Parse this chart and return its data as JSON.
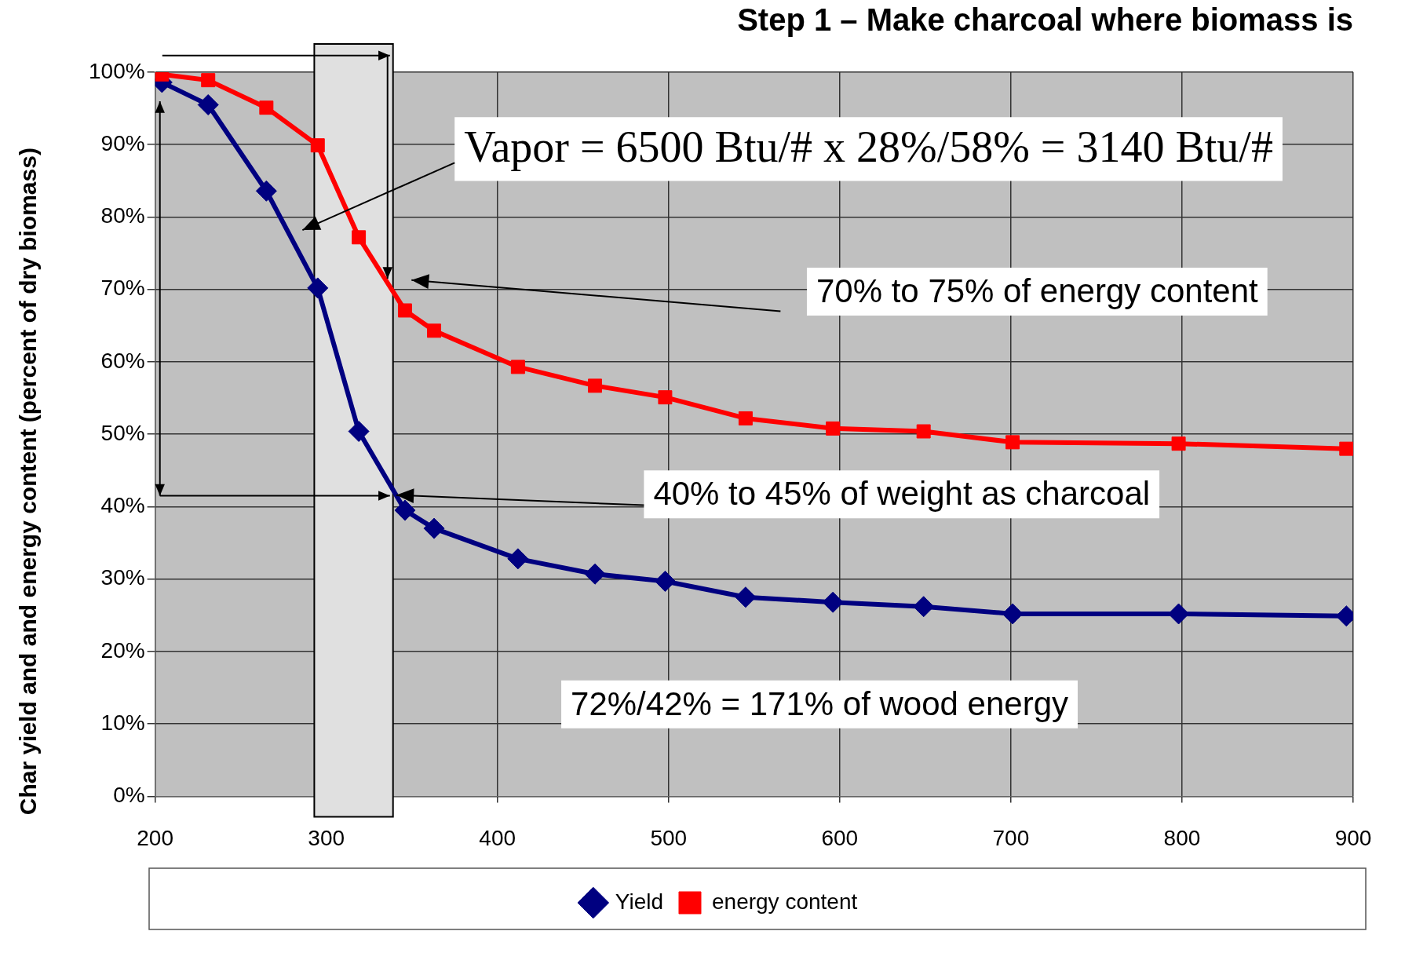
{
  "chart_data": {
    "type": "line",
    "title": "Step 1 – Make charcoal where biomass is",
    "ylabel": "Char yield and and energy content (percent of dry biomass)",
    "x": [
      204,
      231,
      265,
      295,
      319,
      346,
      363,
      412,
      457,
      498,
      545,
      596,
      649,
      701,
      798,
      896
    ],
    "series": [
      {
        "name": "Yield",
        "color": "#000080",
        "marker": "diamond",
        "values": [
          98.6,
          95.5,
          83.6,
          70.2,
          50.4,
          39.5,
          37,
          32.8,
          30.7,
          29.7,
          27.5,
          26.8,
          26.2,
          25.2,
          25.2,
          24.9
        ]
      },
      {
        "name": "energy content",
        "color": "#ff0000",
        "marker": "square",
        "values": [
          99.7,
          98.9,
          95.1,
          89.9,
          77.2,
          67.1,
          64.3,
          59.3,
          56.7,
          55.1,
          52.2,
          50.8,
          50.4,
          48.9,
          48.7,
          48
        ]
      }
    ],
    "xlim": [
      200,
      900
    ],
    "xticks": [
      200,
      300,
      400,
      500,
      600,
      700,
      800,
      900
    ],
    "ylim": [
      0,
      100
    ],
    "yticks": [
      {
        "value": 0,
        "label": "0%"
      },
      {
        "value": 10,
        "label": "10%"
      },
      {
        "value": 20,
        "label": "20%"
      },
      {
        "value": 30,
        "label": "30%"
      },
      {
        "value": 40,
        "label": "40%"
      },
      {
        "value": 50,
        "label": "50%"
      },
      {
        "value": 60,
        "label": "60%"
      },
      {
        "value": 70,
        "label": "70%"
      },
      {
        "value": 80,
        "label": "80%"
      },
      {
        "value": 90,
        "label": "90%"
      },
      {
        "value": 100,
        "label": "100%"
      }
    ],
    "bands": [
      {
        "axis": "x",
        "from": 293,
        "to": 339,
        "color": "#e0e0e0"
      }
    ],
    "annotations": [
      "Vapor = 6500 Btu/# x 28%/58% = 3140 Btu/#",
      "70% to 75% of energy content",
      {
        "text": "40% to 45% of weight as charcoal",
        "x": 341,
        "y": 41.6
      },
      "72%/42% = 171% of wood energy"
    ],
    "grid": true,
    "legend": "bottom",
    "line_style": "solid"
  }
}
